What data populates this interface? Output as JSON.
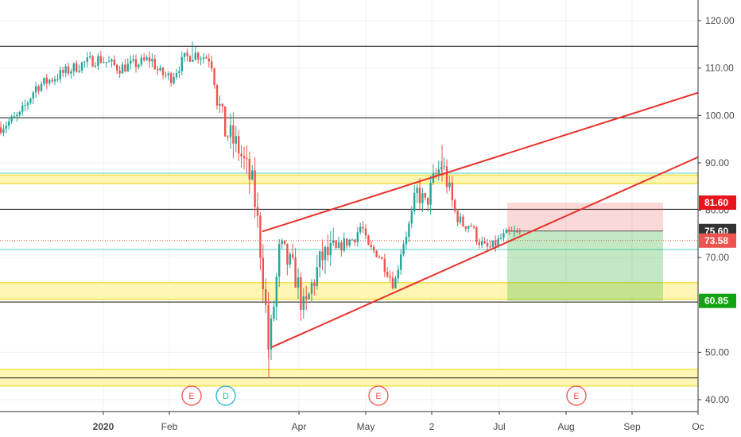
{
  "chart_data": {
    "type": "candlestick",
    "x_ticks": [
      "2020",
      "Feb",
      "Apr",
      "May",
      "2",
      "Jul",
      "Aug",
      "Sep",
      "Oc"
    ],
    "y_ticks": [
      "120.00",
      "110.00",
      "100.00",
      "90.00",
      "80.00",
      "70.00",
      "50.00",
      "40.00"
    ],
    "ylim": [
      38.5,
      123.5
    ],
    "price_tags": [
      {
        "label": "81.60",
        "value": 81.6,
        "color": "#e8141e"
      },
      {
        "label": "75.60",
        "value": 75.6,
        "color": "#333333"
      },
      {
        "label": "73.58",
        "value": 73.58,
        "color": "#ef5350"
      },
      {
        "label": "60.85",
        "value": 60.85,
        "color": "#12a313"
      }
    ],
    "events": [
      {
        "label": "E",
        "color": "#ef5350"
      },
      {
        "label": "D",
        "color": "#26b5c7"
      },
      {
        "label": "E",
        "color": "#ef5350"
      },
      {
        "label": "E",
        "color": "#ef5350"
      }
    ],
    "horizontal_levels": [
      114.6,
      99.5,
      80.2,
      60.6,
      44.6
    ],
    "support_zones": [
      {
        "from": 85.6,
        "to": 87.4
      },
      {
        "from": 61.2,
        "to": 64.7
      },
      {
        "from": 42.9,
        "to": 46.4
      }
    ],
    "cyan_levels": [
      87.8,
      71.7
    ],
    "current_price": 73.58,
    "position": {
      "entry": 75.6,
      "stop": 81.6,
      "target": 60.85
    },
    "colors": {
      "up": "#26a69a",
      "down": "#ef5350",
      "trend": "#e8312b"
    }
  }
}
